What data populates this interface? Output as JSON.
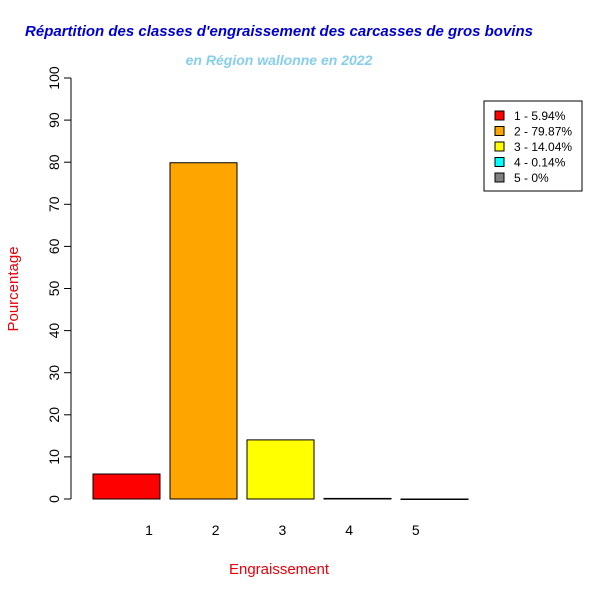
{
  "chart_data": {
    "type": "bar",
    "title": "Répartition des classes d'engraissement des carcasses de gros bovins",
    "subtitle": "en Région wallonne en 2022",
    "xlabel": "Engraissement",
    "ylabel": "Pourcentage",
    "categories": [
      "1",
      "2",
      "3",
      "4",
      "5"
    ],
    "values": [
      5.94,
      79.87,
      14.04,
      0.14,
      0
    ],
    "colors": [
      "#ff0000",
      "#ffa500",
      "#ffff00",
      "#00ffff",
      "#808080"
    ],
    "ylim": [
      0,
      100
    ],
    "yticks": [
      "0",
      "10",
      "20",
      "30",
      "40",
      "50",
      "60",
      "70",
      "80",
      "90",
      "100"
    ],
    "legend": {
      "position": "top-right",
      "entries": [
        "1 - 5.94%",
        "2 - 79.87%",
        "3 - 14.04%",
        "4 - 0.14%",
        "5 - 0%"
      ]
    },
    "grid": false
  },
  "style": {
    "title_color": "#0000cd",
    "subtitle_color": "#87ceeb",
    "label_color": "#e8000b"
  }
}
